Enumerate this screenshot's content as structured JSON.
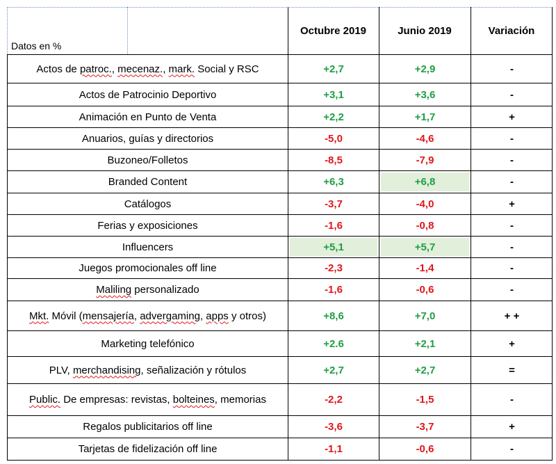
{
  "header": {
    "corner_label": "Datos en %",
    "columns": [
      "Octubre 2019",
      "Junio 2019",
      "Variación"
    ]
  },
  "rows": [
    {
      "label": "Actos de patroc., mecenaz., mark. Social y RSC",
      "oct": "+2,7",
      "jun": "+2,9",
      "var": "-"
    },
    {
      "label": "Actos de Patrocinio Deportivo",
      "oct": "+3,1",
      "jun": "+3,6",
      "var": "-"
    },
    {
      "label": "Animación en Punto de Venta",
      "oct": "+2,2",
      "jun": "+1,7",
      "var": "+"
    },
    {
      "label": "Anuarios, guías y directorios",
      "oct": "-5,0",
      "jun": "-4,6",
      "var": "-"
    },
    {
      "label": "Buzoneo/Folletos",
      "oct": "-8,5",
      "jun": "-7,9",
      "var": "-"
    },
    {
      "label": "Branded Content",
      "oct": "+6,3",
      "jun": "+6,8",
      "var": "-"
    },
    {
      "label": "Catálogos",
      "oct": "-3,7",
      "jun": "-4,0",
      "var": "+"
    },
    {
      "label": "Ferias y exposiciones",
      "oct": "-1,6",
      "jun": "-0,8",
      "var": "-"
    },
    {
      "label": "Influencers",
      "oct": "+5,1",
      "jun": "+5,7",
      "var": "-"
    },
    {
      "label": "Juegos promocionales off line",
      "oct": "-2,3",
      "jun": "-1,4",
      "var": "-"
    },
    {
      "label": "Maliling personalizado",
      "oct": "-1,6",
      "jun": "-0,6",
      "var": "-"
    },
    {
      "label": "Mkt. Móvil (mensajería, advergaming, apps y otros)",
      "oct": "+8,6",
      "jun": "+7,0",
      "var": "+ +"
    },
    {
      "label": "Marketing telefónico",
      "oct": "+2.6",
      "jun": "+2,1",
      "var": "+"
    },
    {
      "label": "PLV, merchandising, señalización y rótulos",
      "oct": "+2,7",
      "jun": "+2,7",
      "var": "="
    },
    {
      "label": "Public. De empresas: revistas, bolteines, memorias",
      "oct": "-2,2",
      "jun": "-1,5",
      "var": "-"
    },
    {
      "label": "Regalos publicitarios off line",
      "oct": "-3,6",
      "jun": "-3,7",
      "var": "+"
    },
    {
      "label": "Tarjetas de fidelización off line",
      "oct": "-1,1",
      "jun": "-0,6",
      "var": "-"
    }
  ],
  "colors": {
    "positive": "#1e9e43",
    "negative": "#e0161a",
    "highlight": "#e2efda"
  }
}
